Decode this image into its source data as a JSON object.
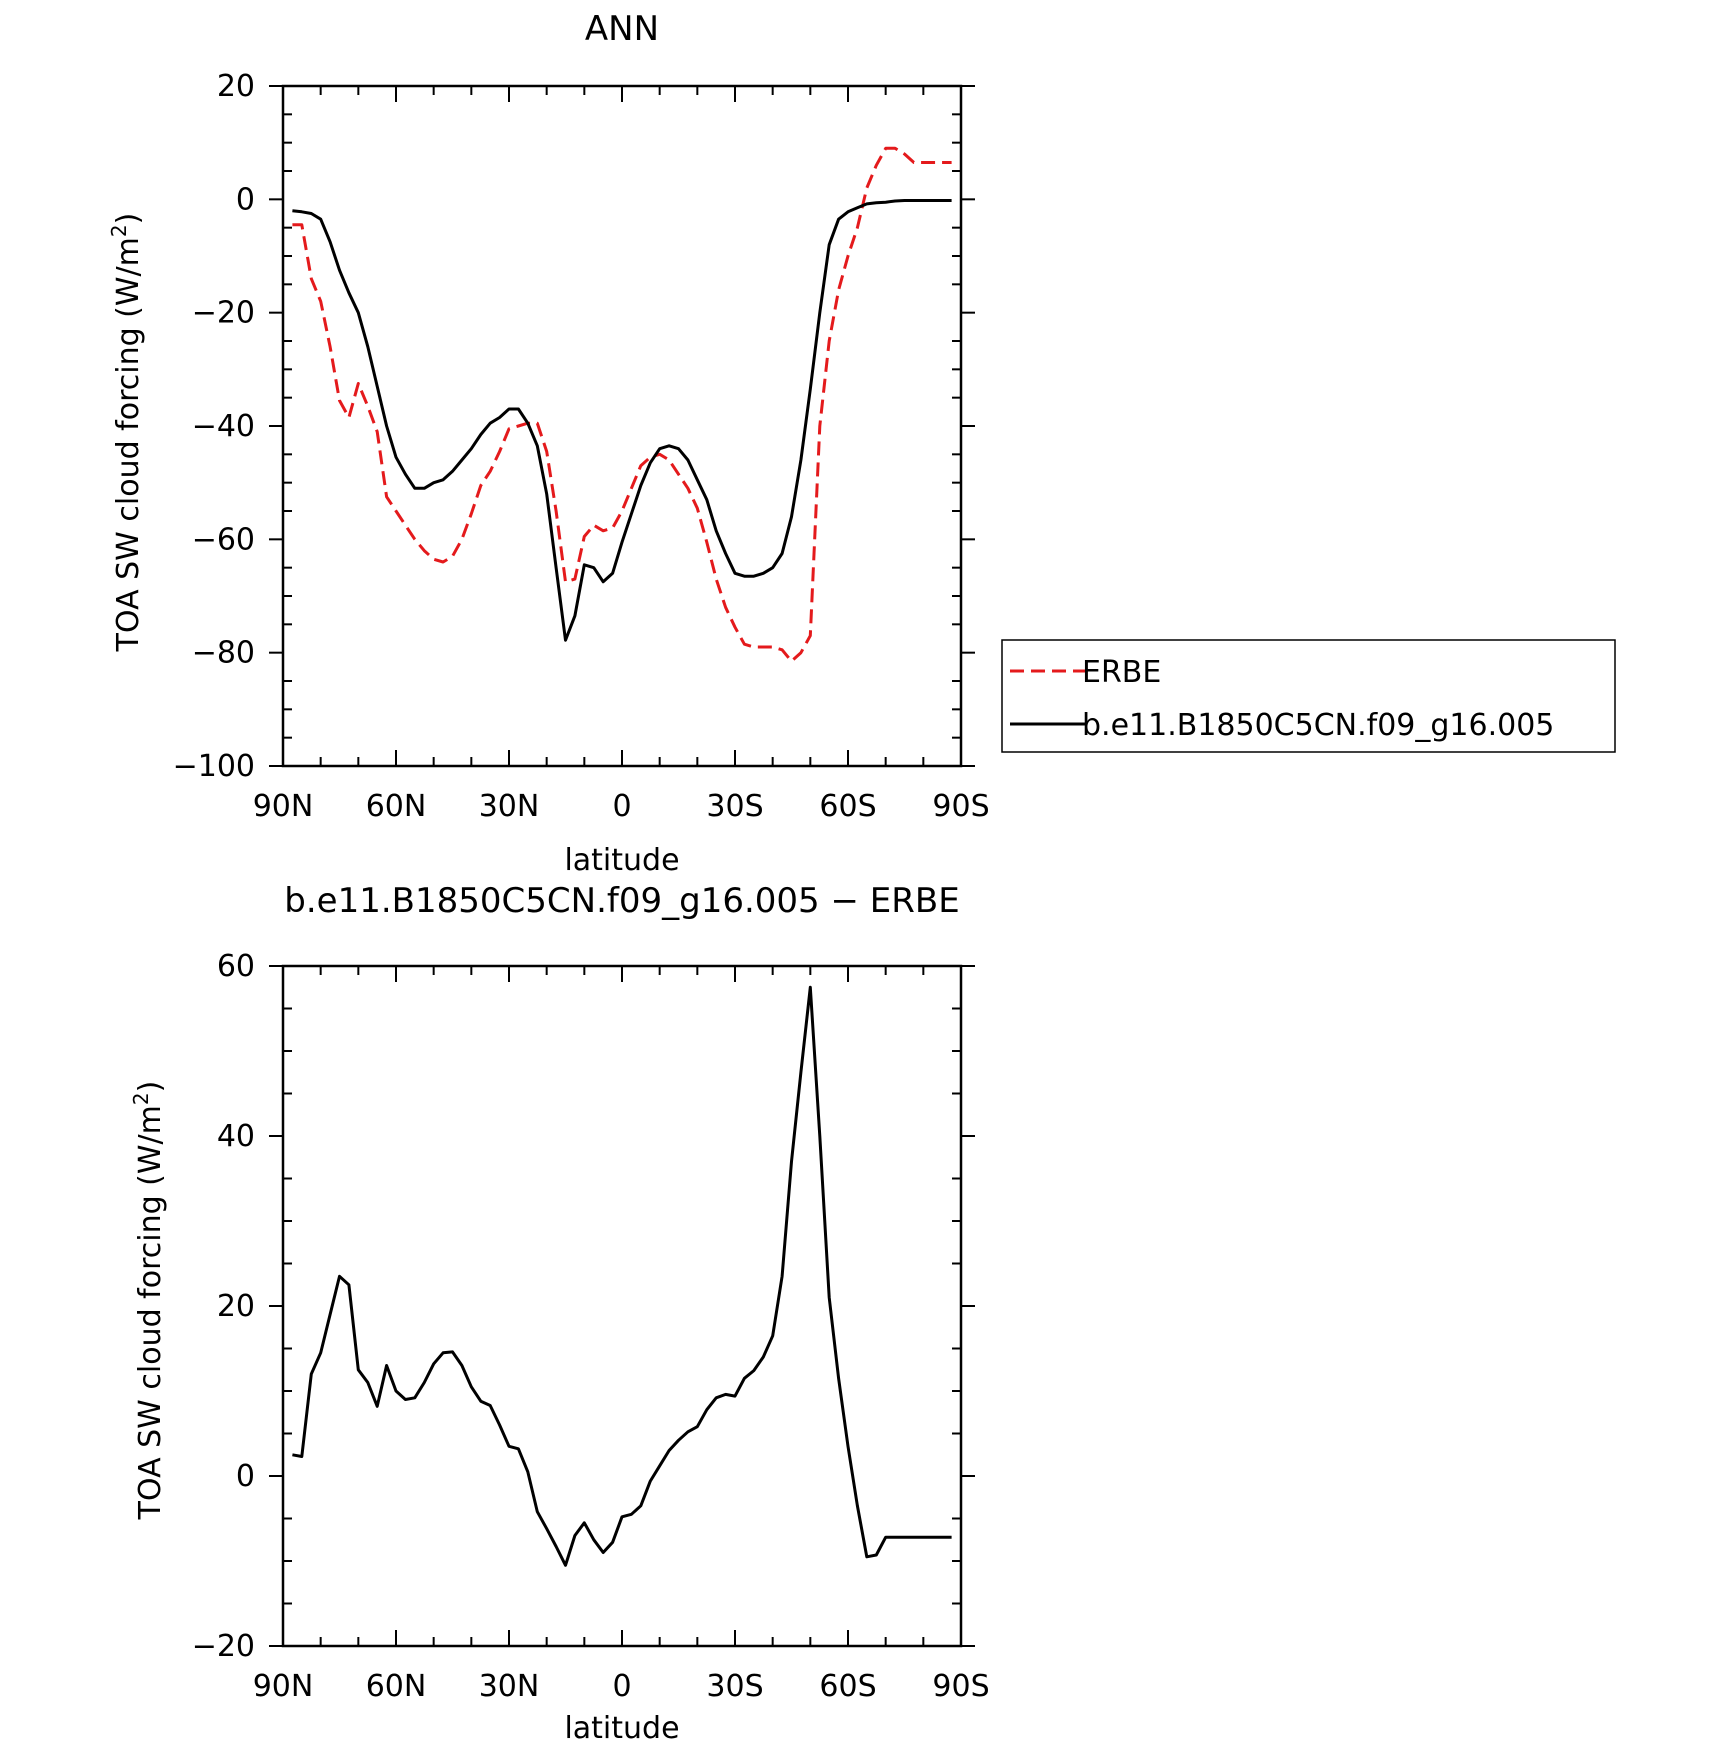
{
  "chart_data": [
    {
      "type": "line",
      "title": "ANN",
      "xlabel": "latitude",
      "ylabel": "TOA SW cloud forcing (W/m²)",
      "ylabel_main": "TOA SW cloud forcing (W/m",
      "ylabel_sup": "2",
      "ylabel_end": ")",
      "xlim": [
        90,
        -90
      ],
      "ylim": [
        -100,
        20
      ],
      "x_ticks": [
        90,
        60,
        30,
        0,
        -30,
        -60,
        -90
      ],
      "x_tick_labels": [
        "90N",
        "60N",
        "30N",
        "0",
        "30S",
        "60S",
        "90S"
      ],
      "y_ticks": [
        -100,
        -80,
        -60,
        -40,
        -20,
        0,
        20
      ],
      "y_tick_labels": [
        "−100",
        "−80",
        "−60",
        "−40",
        "−20",
        "0",
        "20"
      ],
      "legend": "right",
      "series": [
        {
          "name": "ERBE",
          "color": "#e41a1c",
          "style": "dashed",
          "x": [
            87.5,
            85,
            82.5,
            80,
            77.5,
            75,
            72.5,
            70,
            67.5,
            65,
            62.5,
            60,
            57.5,
            55,
            52.5,
            50,
            47.5,
            45,
            42.5,
            40,
            37.5,
            35,
            32.5,
            30,
            27.5,
            25,
            22.5,
            20,
            17.5,
            15,
            12.5,
            10,
            7.5,
            5,
            2.5,
            0,
            -2.5,
            -5,
            -7.5,
            -10,
            -12.5,
            -15,
            -17.5,
            -20,
            -22.5,
            -25,
            -27.5,
            -30,
            -32.5,
            -35,
            -37.5,
            -40,
            -42.5,
            -45,
            -47.5,
            -50,
            -52.5,
            -55,
            -57.5,
            -60,
            -62.5,
            -65,
            -67.5,
            -70,
            -72.5,
            -75,
            -77.5,
            -80,
            -82.5,
            -85,
            -87.5
          ],
          "y": [
            -4.5,
            -4.5,
            -14,
            -18,
            -26,
            -35.5,
            -38.5,
            -32.5,
            -36.5,
            -41,
            -52.5,
            -55,
            -57.5,
            -60,
            -62,
            -63.5,
            -64,
            -63,
            -60,
            -55.5,
            -50.5,
            -48,
            -44.5,
            -40.5,
            -40,
            -39.5,
            -39.5,
            -44.5,
            -55,
            -67.5,
            -67,
            -59.5,
            -57.5,
            -58.5,
            -58,
            -55,
            -51,
            -47,
            -45.5,
            -45,
            -46,
            -48.5,
            -51,
            -54.5,
            -60.5,
            -67,
            -72,
            -75.5,
            -78.5,
            -79,
            -79,
            -79,
            -79.5,
            -81.5,
            -80,
            -77,
            -40,
            -25,
            -16,
            -10,
            -5,
            2,
            6,
            9,
            9,
            8,
            6.5,
            6.5,
            6.5,
            6.5,
            6.5
          ]
        },
        {
          "name": "b.e11.B1850C5CN.f09_g16.005",
          "color": "#000000",
          "style": "solid",
          "x": [
            87.5,
            85,
            82.5,
            80,
            77.5,
            75,
            72.5,
            70,
            67.5,
            65,
            62.5,
            60,
            57.5,
            55,
            52.5,
            50,
            47.5,
            45,
            42.5,
            40,
            37.5,
            35,
            32.5,
            30,
            27.5,
            25,
            22.5,
            20,
            17.5,
            15,
            12.5,
            10,
            7.5,
            5,
            2.5,
            0,
            -2.5,
            -5,
            -7.5,
            -10,
            -12.5,
            -15,
            -17.5,
            -20,
            -22.5,
            -25,
            -27.5,
            -30,
            -32.5,
            -35,
            -37.5,
            -40,
            -42.5,
            -45,
            -47.5,
            -50,
            -52.5,
            -55,
            -57.5,
            -60,
            -62.5,
            -65,
            -67.5,
            -70,
            -72.5,
            -75,
            -77.5,
            -80,
            -82.5,
            -85,
            -87.5
          ],
          "y": [
            -2,
            -2.2,
            -2.5,
            -3.5,
            -7.5,
            -12.5,
            -16.5,
            -20,
            -26,
            -33,
            -40,
            -45.5,
            -48.5,
            -51,
            -51,
            -50,
            -49.5,
            -48,
            -46,
            -44,
            -41.5,
            -39.5,
            -38.5,
            -37,
            -37,
            -39.5,
            -43.5,
            -52,
            -65,
            -77.8,
            -73.5,
            -64.5,
            -65,
            -67.5,
            -66,
            -60.5,
            -55.5,
            -50.5,
            -46.5,
            -44,
            -43.5,
            -44,
            -46,
            -49.5,
            -53,
            -58.5,
            -62.5,
            -66,
            -66.5,
            -66.5,
            -66,
            -65,
            -62.5,
            -56,
            -46,
            -33.5,
            -20,
            -8,
            -3.5,
            -2.2,
            -1.5,
            -0.8,
            -0.6,
            -0.5,
            -0.3,
            -0.2,
            -0.2,
            -0.2,
            -0.2,
            -0.2,
            -0.2
          ]
        }
      ]
    },
    {
      "type": "line",
      "title": "b.e11.B1850C5CN.f09_g16.005 − ERBE",
      "xlabel": "latitude",
      "ylabel": "TOA SW cloud forcing (W/m²)",
      "ylabel_main": "TOA SW cloud forcing (W/m",
      "ylabel_sup": "2",
      "ylabel_end": ")",
      "xlim": [
        90,
        -90
      ],
      "ylim": [
        -20,
        60
      ],
      "x_ticks": [
        90,
        60,
        30,
        0,
        -30,
        -60,
        -90
      ],
      "x_tick_labels": [
        "90N",
        "60N",
        "30N",
        "0",
        "30S",
        "60S",
        "90S"
      ],
      "y_ticks": [
        -20,
        0,
        20,
        40,
        60
      ],
      "y_tick_labels": [
        "−20",
        "0",
        "20",
        "40",
        "60"
      ],
      "series": [
        {
          "color": "#000000",
          "style": "solid",
          "x": [
            87.5,
            85,
            82.5,
            80,
            77.5,
            75,
            72.5,
            70,
            67.5,
            65,
            62.5,
            60,
            57.5,
            55,
            52.5,
            50,
            47.5,
            45,
            42.5,
            40,
            37.5,
            35,
            32.5,
            30,
            27.5,
            25,
            22.5,
            20,
            17.5,
            15,
            12.5,
            10,
            7.5,
            5,
            2.5,
            0,
            -2.5,
            -5,
            -7.5,
            -10,
            -12.5,
            -15,
            -17.5,
            -20,
            -22.5,
            -25,
            -27.5,
            -30,
            -32.5,
            -35,
            -37.5,
            -40,
            -42.5,
            -45,
            -47.5,
            -50,
            -52.5,
            -55,
            -57.5,
            -60,
            -62.5,
            -65,
            -67.5,
            -70,
            -72.5,
            -75,
            -77.5,
            -80,
            -82.5,
            -85,
            -87.5
          ],
          "y": [
            2.5,
            2.3,
            12,
            14.5,
            19,
            23.5,
            22.5,
            12.5,
            11,
            8.2,
            13,
            10,
            9,
            9.2,
            11,
            13.2,
            14.5,
            14.6,
            13,
            10.5,
            8.8,
            8.3,
            6,
            3.5,
            3.2,
            0.5,
            -4.2,
            -6.2,
            -8.3,
            -10.5,
            -7,
            -5.5,
            -7.5,
            -9,
            -7.8,
            -4.8,
            -4.5,
            -3.5,
            -0.6,
            1.2,
            3,
            4.2,
            5.2,
            5.8,
            7.8,
            9.2,
            9.6,
            9.4,
            11.5,
            12.4,
            14,
            16.5,
            23.5,
            37,
            47.5,
            57.5,
            40,
            21,
            11.5,
            3.5,
            -3.5,
            -9.5,
            -9.3,
            -7.2,
            -7.2,
            -7.2,
            -7.2,
            -7.2,
            -7.2,
            -7.2,
            -7.2
          ]
        }
      ]
    }
  ]
}
